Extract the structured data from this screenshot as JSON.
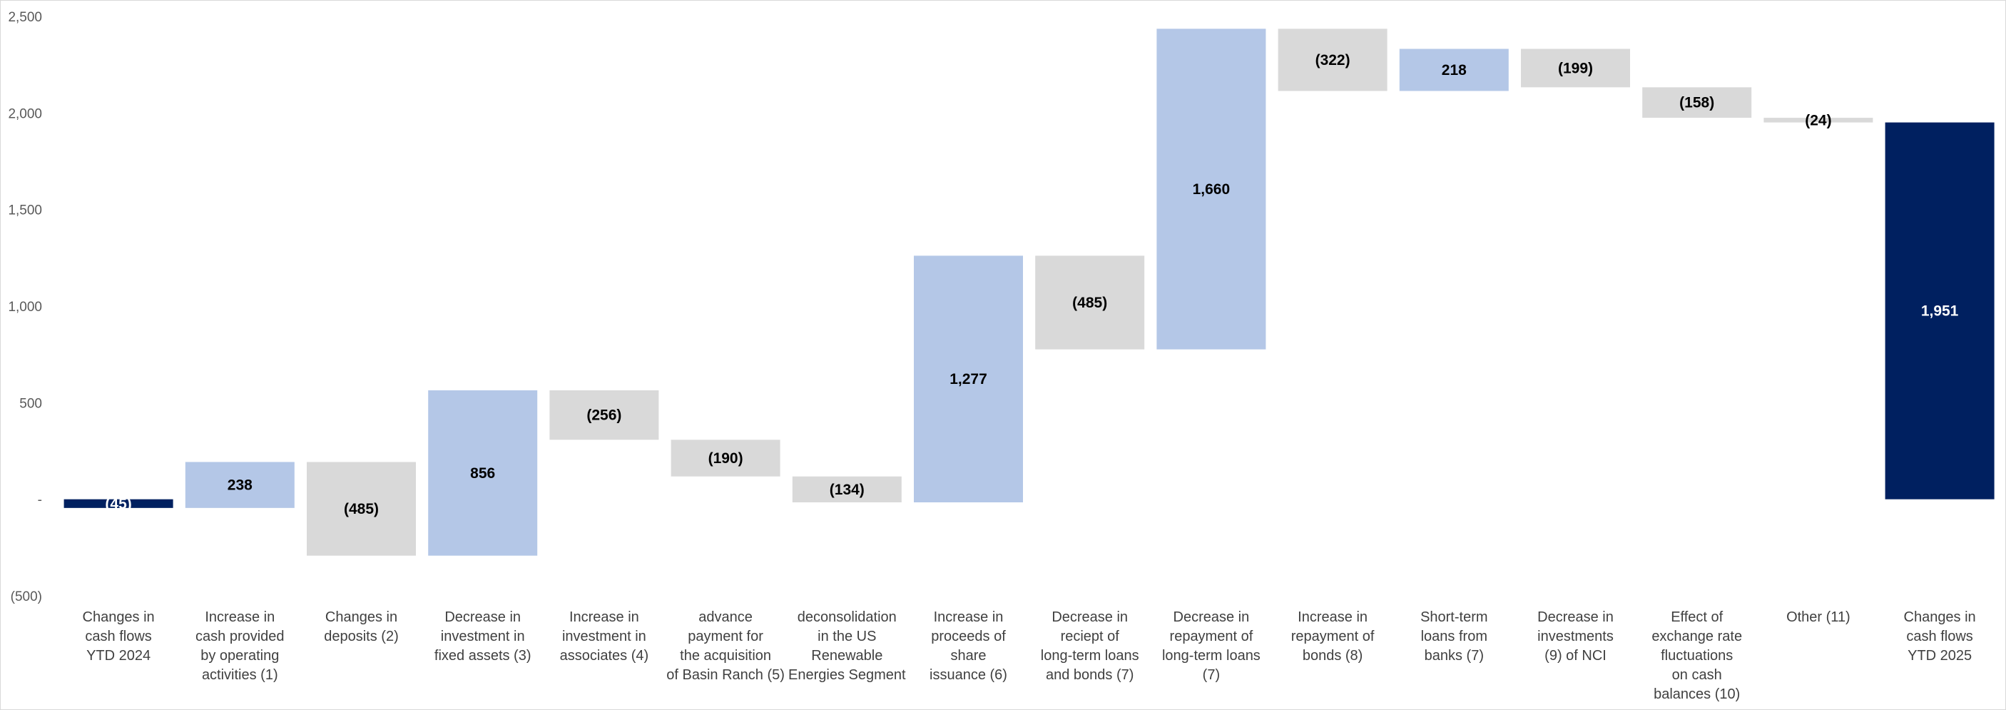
{
  "chart_data": {
    "type": "bar",
    "subtype": "waterfall",
    "title": "",
    "xlabel": "",
    "ylabel": "",
    "ylim": [
      -500,
      2500
    ],
    "yticks": [
      {
        "value": -500,
        "label": "(500)"
      },
      {
        "value": 0,
        "label": "-"
      },
      {
        "value": 500,
        "label": "500"
      },
      {
        "value": 1000,
        "label": "1,000"
      },
      {
        "value": 1500,
        "label": "1,500"
      },
      {
        "value": 2000,
        "label": "2,000"
      },
      {
        "value": 2500,
        "label": "2,500"
      }
    ],
    "grid": false,
    "legend": "none",
    "colors": {
      "total": "#002060",
      "increase": "#b4c7e7",
      "decrease": "#d9d9d9",
      "label_dark": "#000000",
      "label_light": "#ffffff"
    },
    "bars": [
      {
        "category": [
          "Changes in",
          "cash flows",
          "YTD 2024"
        ],
        "kind": "total",
        "start": 0,
        "end": -45,
        "label": "(45)"
      },
      {
        "category": [
          "Increase in",
          "cash provided",
          "by operating",
          "activities (1)"
        ],
        "kind": "increase",
        "start": -45,
        "end": 193,
        "label": "238"
      },
      {
        "category": [
          "Changes in",
          "deposits (2)"
        ],
        "kind": "decrease",
        "start": 193,
        "end": -292,
        "label": "(485)"
      },
      {
        "category": [
          "Decrease in",
          "investment in",
          "fixed assets (3)"
        ],
        "kind": "increase",
        "start": -292,
        "end": 564,
        "label": "856"
      },
      {
        "category": [
          "Increase in",
          "investment in",
          "associates (4)"
        ],
        "kind": "decrease",
        "start": 564,
        "end": 308,
        "label": "(256)"
      },
      {
        "category": [
          "advance",
          "payment for",
          "the acquisition",
          "of Basin Ranch (5)"
        ],
        "kind": "decrease",
        "start": 308,
        "end": 118,
        "label": "(190)"
      },
      {
        "category": [
          "deconsolidation",
          "in the US",
          "Renewable",
          "Energies Segment"
        ],
        "kind": "decrease",
        "start": 118,
        "end": -16,
        "label": "(134)"
      },
      {
        "category": [
          "Increase in",
          "proceeds of",
          "share",
          "issuance (6)"
        ],
        "kind": "increase",
        "start": -16,
        "end": 1261,
        "label": "1,277"
      },
      {
        "category": [
          "Decrease in",
          "reciept of",
          "long-term loans",
          "and bonds (7)"
        ],
        "kind": "decrease",
        "start": 1261,
        "end": 776,
        "label": "(485)"
      },
      {
        "category": [
          "Decrease in",
          "repayment of",
          "long-term loans",
          "(7)"
        ],
        "kind": "increase",
        "start": 776,
        "end": 2436,
        "label": "1,660"
      },
      {
        "category": [
          "Increase in",
          "repayment of",
          "bonds (8)"
        ],
        "kind": "decrease",
        "start": 2436,
        "end": 2114,
        "label": "(322)"
      },
      {
        "category": [
          "Short-term",
          "loans from",
          "banks (7)"
        ],
        "kind": "increase",
        "start": 2114,
        "end": 2332,
        "label": "218"
      },
      {
        "category": [
          "Decrease in",
          "investments",
          "(9) of NCI"
        ],
        "kind": "decrease",
        "start": 2332,
        "end": 2133,
        "label": "(199)"
      },
      {
        "category": [
          "Effect of",
          "exchange rate",
          "fluctuations",
          "on cash",
          "balances (10)"
        ],
        "kind": "decrease",
        "start": 2133,
        "end": 1975,
        "label": "(158)"
      },
      {
        "category": [
          "Other (11)"
        ],
        "kind": "decrease",
        "start": 1975,
        "end": 1951,
        "label": "(24)"
      },
      {
        "category": [
          "Changes in",
          "cash flows",
          "YTD 2025"
        ],
        "kind": "total",
        "start": 0,
        "end": 1951,
        "label": "1,951"
      }
    ]
  }
}
